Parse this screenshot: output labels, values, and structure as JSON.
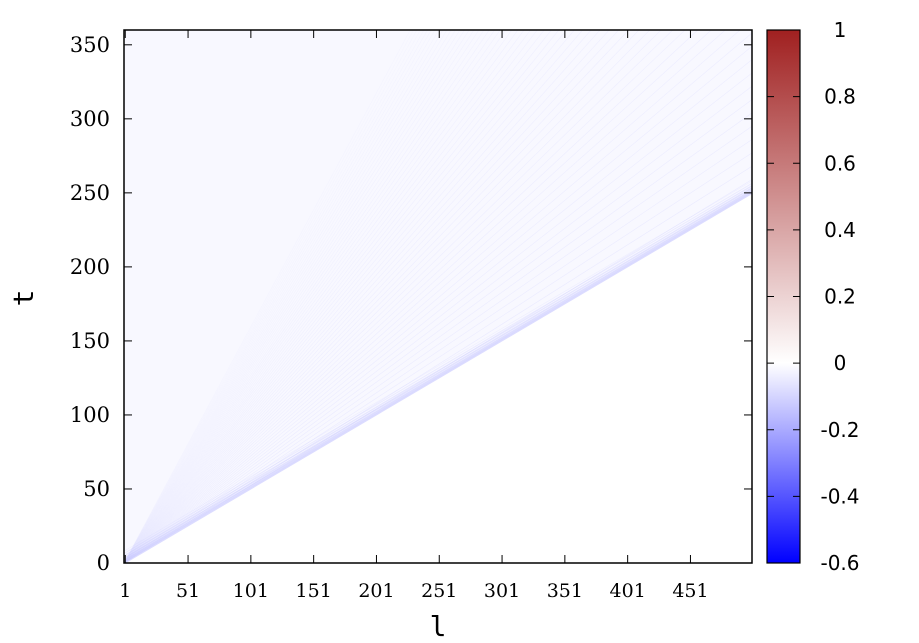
{
  "chart_data": {
    "type": "heatmap",
    "xlabel": "l",
    "ylabel": "t",
    "x_ticks": [
      "1",
      "51",
      "101",
      "151",
      "201",
      "251",
      "301",
      "351",
      "401",
      "451"
    ],
    "x_tick_values": [
      1,
      51,
      101,
      151,
      201,
      251,
      301,
      351,
      401,
      451
    ],
    "xlim": [
      0,
      500
    ],
    "y_ticks": [
      "0",
      "50",
      "100",
      "150",
      "200",
      "250",
      "300",
      "350"
    ],
    "y_tick_values": [
      0,
      50,
      100,
      150,
      200,
      250,
      300,
      350
    ],
    "ylim": [
      0,
      360
    ],
    "colorbar": {
      "min": -0.6,
      "max": 1,
      "ticks": [
        "1",
        "0.8",
        "0.6",
        "0.4",
        "0.2",
        "0",
        "-0.2",
        "-0.4",
        "-0.6"
      ],
      "tick_values": [
        1,
        0.8,
        0.6,
        0.4,
        0.2,
        0,
        -0.2,
        -0.4,
        -0.6
      ],
      "colors": {
        "low": "#0000ff",
        "mid": "#ffffff",
        "high": "#a02020"
      }
    },
    "light_cone_slope": 0.5,
    "description_values": {
      "front_value": -0.15,
      "interior_value": -0.03,
      "outside_value": 0
    }
  }
}
